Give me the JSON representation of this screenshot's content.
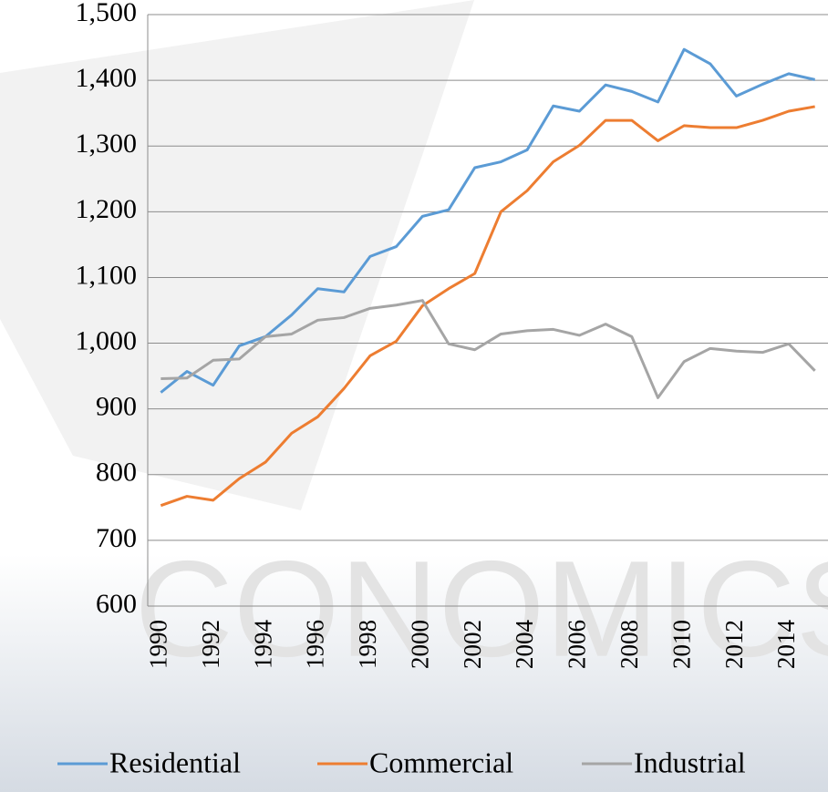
{
  "chart_data": {
    "type": "line",
    "watermark": "CONOMICS",
    "x": [
      1990,
      1991,
      1992,
      1993,
      1994,
      1995,
      1996,
      1997,
      1998,
      1999,
      2000,
      2001,
      2002,
      2003,
      2004,
      2005,
      2006,
      2007,
      2008,
      2009,
      2010,
      2011,
      2012,
      2013,
      2014,
      2015
    ],
    "xlim": [
      1989.5,
      2015.5
    ],
    "xticks": [
      1990,
      1992,
      1994,
      1996,
      1998,
      2000,
      2002,
      2004,
      2006,
      2008,
      2010,
      2012,
      2014
    ],
    "ylim": [
      600,
      1500
    ],
    "yticks": [
      600,
      700,
      800,
      900,
      {
        "value": 1000,
        "label": "1,000"
      },
      {
        "value": 1100,
        "label": "1,100"
      },
      {
        "value": 1200,
        "label": "1,200"
      },
      {
        "value": 1300,
        "label": "1,300"
      },
      {
        "value": 1400,
        "label": "1,400"
      },
      {
        "value": 1500,
        "label": "1,500"
      }
    ],
    "grid": true,
    "legend": "bottom",
    "series": [
      {
        "name": "Residential",
        "color": "#5b9bd5",
        "values": [
          925,
          957,
          936,
          996,
          1010,
          1043,
          1083,
          1078,
          1132,
          1147,
          1193,
          1203,
          1267,
          1276,
          1294,
          1361,
          1353,
          1393,
          1383,
          1367,
          1447,
          1425,
          1376,
          1394,
          1410,
          1401
        ]
      },
      {
        "name": "Commercial",
        "color": "#ed7d31",
        "values": [
          753,
          767,
          761,
          794,
          819,
          863,
          888,
          931,
          981,
          1003,
          1057,
          1083,
          1106,
          1200,
          1232,
          1276,
          1301,
          1339,
          1339,
          1308,
          1331,
          1328,
          1328,
          1339,
          1353,
          1360
        ]
      },
      {
        "name": "Industrial",
        "color": "#a5a5a5",
        "values": [
          946,
          947,
          974,
          976,
          1010,
          1014,
          1035,
          1039,
          1053,
          1058,
          1065,
          999,
          990,
          1014,
          1019,
          1021,
          1012,
          1029,
          1010,
          917,
          972,
          992,
          988,
          986,
          999,
          958
        ]
      }
    ]
  }
}
